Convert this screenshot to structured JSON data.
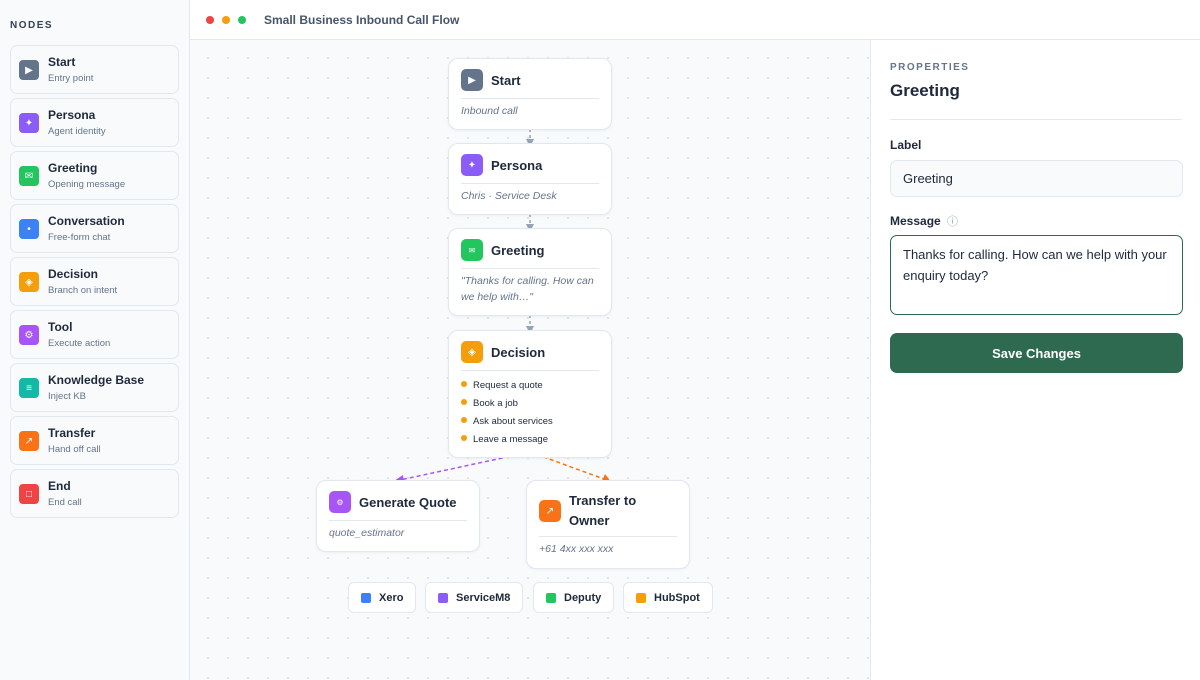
{
  "sidebar": {
    "title": "NODES",
    "items": [
      {
        "label": "Start",
        "desc": "Entry point",
        "icon": "play-icon",
        "color": "#64748b"
      },
      {
        "label": "Persona",
        "desc": "Agent identity",
        "icon": "sparkle-icon",
        "color": "#8b5cf6"
      },
      {
        "label": "Greeting",
        "desc": "Opening message",
        "icon": "envelope-icon",
        "color": "#22c55e"
      },
      {
        "label": "Conversation",
        "desc": "Free-form chat",
        "icon": "dot-icon",
        "color": "#3b82f6"
      },
      {
        "label": "Decision",
        "desc": "Branch on intent",
        "icon": "diamond-icon",
        "color": "#f59e0b"
      },
      {
        "label": "Tool",
        "desc": "Execute action",
        "icon": "gear-icon",
        "color": "#a855f7"
      },
      {
        "label": "Knowledge Base",
        "desc": "Inject KB",
        "icon": "list-icon",
        "color": "#14b8a6"
      },
      {
        "label": "Transfer",
        "desc": "Hand off call",
        "icon": "arrow-out-icon",
        "color": "#f97316"
      },
      {
        "label": "End",
        "desc": "End call",
        "icon": "square-icon",
        "color": "#ef4444"
      }
    ]
  },
  "header": {
    "title": "Small Business Inbound Call Flow"
  },
  "flow": {
    "start": {
      "title": "Start",
      "sub": "Inbound call"
    },
    "persona": {
      "title": "Persona",
      "sub": "Chris · Service Desk"
    },
    "greeting": {
      "title": "Greeting",
      "sub": "\"Thanks for calling. How can we help with…\""
    },
    "decision": {
      "title": "Decision",
      "branches": [
        "Request a quote",
        "Book a job",
        "Ask about services",
        "Leave a message"
      ]
    },
    "quote": {
      "title": "Generate Quote",
      "sub": "quote_estimator"
    },
    "transfer": {
      "title": "Transfer to Owner",
      "sub": "+61 4xx xxx xxx"
    }
  },
  "integrations": [
    {
      "label": "Xero",
      "color": "#3b82f6"
    },
    {
      "label": "ServiceM8",
      "color": "#8b5cf6"
    },
    {
      "label": "Deputy",
      "color": "#22c55e"
    },
    {
      "label": "HubSpot",
      "color": "#f59e0b"
    }
  ],
  "properties": {
    "caption": "PROPERTIES",
    "title": "Greeting",
    "label_label": "Label",
    "label_value": "Greeting",
    "message_label": "Message",
    "message_value": "Thanks for calling. How can we help with your enquiry today?",
    "save": "Save Changes"
  }
}
